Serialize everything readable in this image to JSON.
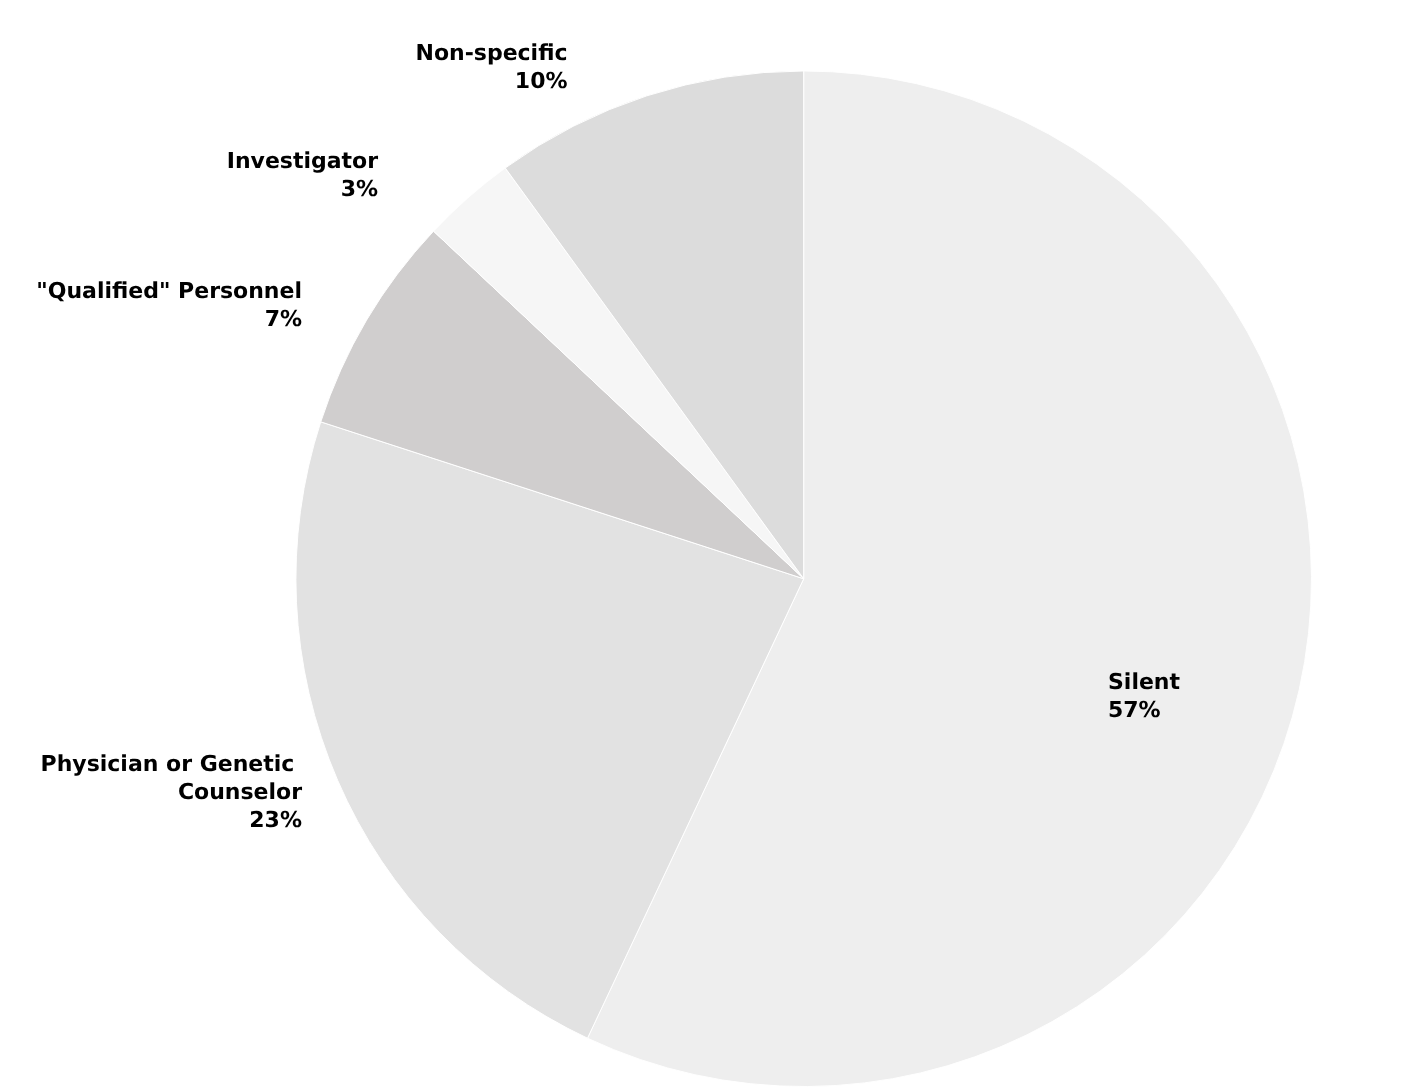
{
  "chart_data": {
    "type": "pie",
    "categories": [
      "Silent",
      "Physician or Genetic Counselor",
      "\"Qualified\" Personnel",
      "Investigator",
      "Non-specific"
    ],
    "values": [
      57,
      23,
      7,
      3,
      10
    ],
    "value_labels": [
      "57%",
      "23%",
      "7%",
      "3%",
      "10%"
    ],
    "colors": [
      "#eeeeee",
      "#e2e2e2",
      "#d0cece",
      "#f6f6f6",
      "#dcdcdc"
    ],
    "legend": false
  }
}
